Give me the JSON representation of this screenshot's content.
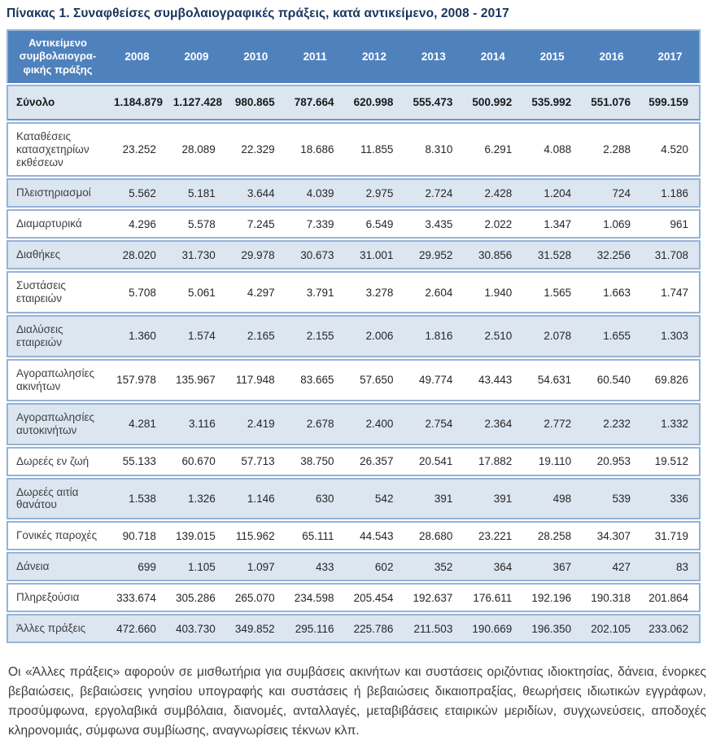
{
  "page": {
    "title": "Πίνακας 1. Συναφθείσες συμβολαιογραφικές πράξεις, κατά αντικείμενο, 2008 - 2017",
    "footnote": "Οι «Άλλες πράξεις» αφορούν σε μισθωτήρια για συμβάσεις ακινήτων και συστάσεις οριζόντιας ιδιοκτησίας, δάνεια, ένορκες βεβαιώσεις, βεβαιώσεις γνησίου υπογραφής και συστάσεις ή βεβαιώσεις δικαιοπραξίας, θεωρήσεις ιδιωτικών εγγράφων, προσύμφωνα, εργολαβικά συμβόλαια, διανομές, ανταλλαγές, μεταβιβάσεις εταιρικών μεριδίων, συγχωνεύσεις, αποδοχές κληρονομιάς, σύμφωνα συμβίωσης, αναγνωρίσεις τέκνων κλπ."
  },
  "table": {
    "header_label_lines": [
      "Αντικείμενο",
      "συμβολαιογρα-",
      "φικής πράξης"
    ],
    "years": [
      "2008",
      "2009",
      "2010",
      "2011",
      "2012",
      "2013",
      "2014",
      "2015",
      "2016",
      "2017"
    ],
    "rows": [
      {
        "label": "Σύνολο",
        "total": true,
        "shaded": true,
        "values": [
          "1.184.879",
          "1.127.428",
          "980.865",
          "787.664",
          "620.998",
          "555.473",
          "500.992",
          "535.992",
          "551.076",
          "599.159"
        ]
      },
      {
        "label": "Καταθέσεις κατασχετηρίων εκθέσεων",
        "total": false,
        "shaded": false,
        "values": [
          "23.252",
          "28.089",
          "22.329",
          "18.686",
          "11.855",
          "8.310",
          "6.291",
          "4.088",
          "2.288",
          "4.520"
        ]
      },
      {
        "label": "Πλειστηριασμοί",
        "total": false,
        "shaded": true,
        "values": [
          "5.562",
          "5.181",
          "3.644",
          "4.039",
          "2.975",
          "2.724",
          "2.428",
          "1.204",
          "724",
          "1.186"
        ]
      },
      {
        "label": "Διαμαρτυρικά",
        "total": false,
        "shaded": false,
        "values": [
          "4.296",
          "5.578",
          "7.245",
          "7.339",
          "6.549",
          "3.435",
          "2.022",
          "1.347",
          "1.069",
          "961"
        ]
      },
      {
        "label": "Διαθήκες",
        "total": false,
        "shaded": true,
        "values": [
          "28.020",
          "31.730",
          "29.978",
          "30.673",
          "31.001",
          "29.952",
          "30.856",
          "31.528",
          "32.256",
          "31.708"
        ]
      },
      {
        "label": "Συστάσεις εταιρειών",
        "total": false,
        "shaded": false,
        "values": [
          "5.708",
          "5.061",
          "4.297",
          "3.791",
          "3.278",
          "2.604",
          "1.940",
          "1.565",
          "1.663",
          "1.747"
        ]
      },
      {
        "label": "Διαλύσεις εταιρειών",
        "total": false,
        "shaded": true,
        "values": [
          "1.360",
          "1.574",
          "2.165",
          "2.155",
          "2.006",
          "1.816",
          "2.510",
          "2.078",
          "1.655",
          "1.303"
        ]
      },
      {
        "label": "Αγοραπωλησίες ακινήτων",
        "total": false,
        "shaded": false,
        "values": [
          "157.978",
          "135.967",
          "117.948",
          "83.665",
          "57.650",
          "49.774",
          "43.443",
          "54.631",
          "60.540",
          "69.826"
        ]
      },
      {
        "label": "Αγοραπωλησίες αυτοκινήτων",
        "total": false,
        "shaded": true,
        "values": [
          "4.281",
          "3.116",
          "2.419",
          "2.678",
          "2.400",
          "2.754",
          "2.364",
          "2.772",
          "2.232",
          "1.332"
        ]
      },
      {
        "label": "Δωρεές εν ζωή",
        "total": false,
        "shaded": false,
        "values": [
          "55.133",
          "60.670",
          "57.713",
          "38.750",
          "26.357",
          "20.541",
          "17.882",
          "19.110",
          "20.953",
          "19.512"
        ]
      },
      {
        "label": "Δωρεές αιτία θανάτου",
        "total": false,
        "shaded": true,
        "values": [
          "1.538",
          "1.326",
          "1.146",
          "630",
          "542",
          "391",
          "391",
          "498",
          "539",
          "336"
        ]
      },
      {
        "label": "Γονικές παροχές",
        "total": false,
        "shaded": false,
        "values": [
          "90.718",
          "139.015",
          "115.962",
          "65.111",
          "44.543",
          "28.680",
          "23.221",
          "28.258",
          "34.307",
          "31.719"
        ]
      },
      {
        "label": "Δάνεια",
        "total": false,
        "shaded": true,
        "values": [
          "699",
          "1.105",
          "1.097",
          "433",
          "602",
          "352",
          "364",
          "367",
          "427",
          "83"
        ]
      },
      {
        "label": "Πληρεξούσια",
        "total": false,
        "shaded": false,
        "values": [
          "333.674",
          "305.286",
          "265.070",
          "234.598",
          "205.454",
          "192.637",
          "176.611",
          "192.196",
          "190.318",
          "201.864"
        ]
      },
      {
        "label": "Άλλες πράξεις",
        "total": false,
        "shaded": true,
        "values": [
          "472.660",
          "403.730",
          "349.852",
          "295.116",
          "225.786",
          "211.503",
          "190.669",
          "196.350",
          "202.105",
          "233.062"
        ]
      }
    ]
  },
  "colors": {
    "header_bg": "#4f81bd",
    "header_text": "#ffffff",
    "band_bg": "#dce6f1",
    "border": "#95b3d7",
    "title_text": "#17365d",
    "body_text": "#404040"
  }
}
